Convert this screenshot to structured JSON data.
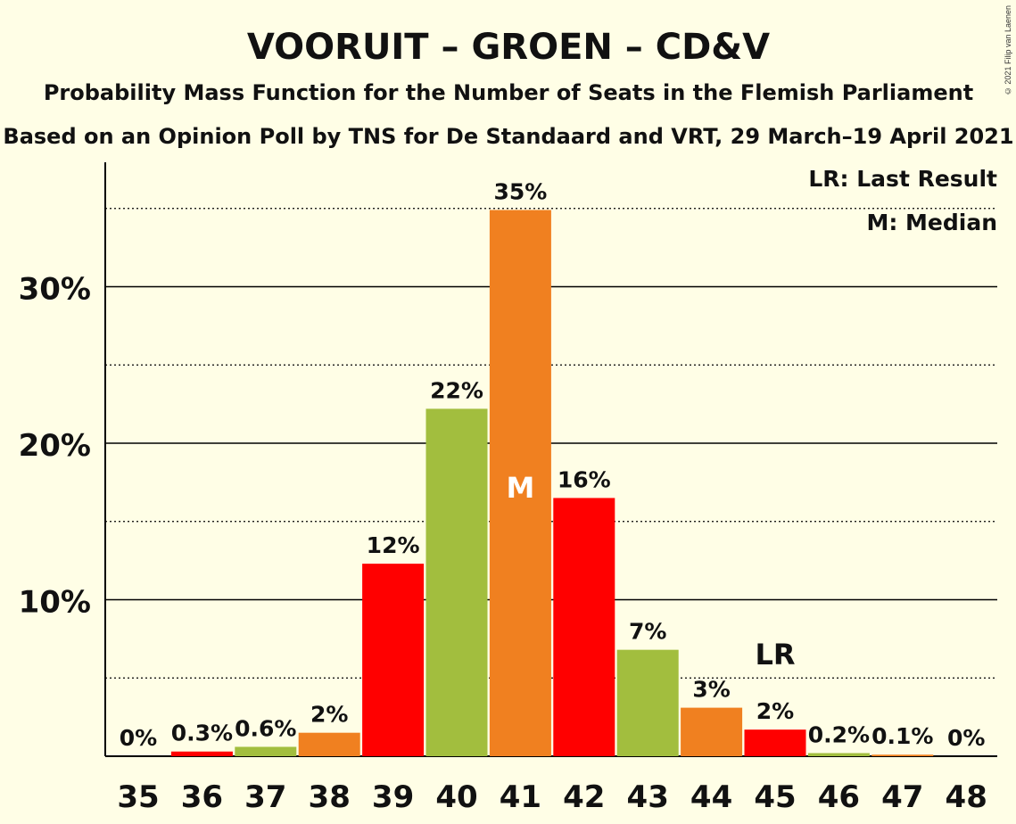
{
  "chart_data": {
    "type": "bar",
    "title": "VOORUIT – GROEN – CD&V",
    "subtitle": "Probability Mass Function for the Number of Seats in the Flemish Parliament",
    "subtitle2": "Based on an Opinion Poll by TNS for De Standaard and VRT, 29 March–19 April 2021",
    "categories": [
      "35",
      "36",
      "37",
      "38",
      "39",
      "40",
      "41",
      "42",
      "43",
      "44",
      "45",
      "46",
      "47",
      "48"
    ],
    "values": [
      0,
      0.3,
      0.6,
      1.5,
      12.3,
      22.2,
      34.9,
      16.5,
      6.8,
      3.1,
      1.7,
      0.2,
      0.1,
      0
    ],
    "value_labels": [
      "0%",
      "0.3%",
      "0.6%",
      "2%",
      "12%",
      "22%",
      "35%",
      "16%",
      "7%",
      "3%",
      "2%",
      "0.2%",
      "0.1%",
      "0%"
    ],
    "bar_colors": [
      "#FF0000",
      "#FF0000",
      "#A2BE3E",
      "#F08020",
      "#FF0000",
      "#A2BE3E",
      "#F08020",
      "#FF0000",
      "#A2BE3E",
      "#F08020",
      "#FF0000",
      "#A2BE3E",
      "#F08020",
      "#FF0000"
    ],
    "yticks": [
      10,
      20,
      30
    ],
    "ytick_labels": [
      "10%",
      "20%",
      "30%"
    ],
    "ylim": [
      0,
      38
    ],
    "median_category": "41",
    "median_marker": "M",
    "last_result_category": "45",
    "last_result_marker": "LR",
    "legend": [
      "LR: Last Result",
      "M: Median"
    ],
    "legend_position": "top-right",
    "grid": true
  },
  "copyright": "© 2021 Filip van Laenen"
}
